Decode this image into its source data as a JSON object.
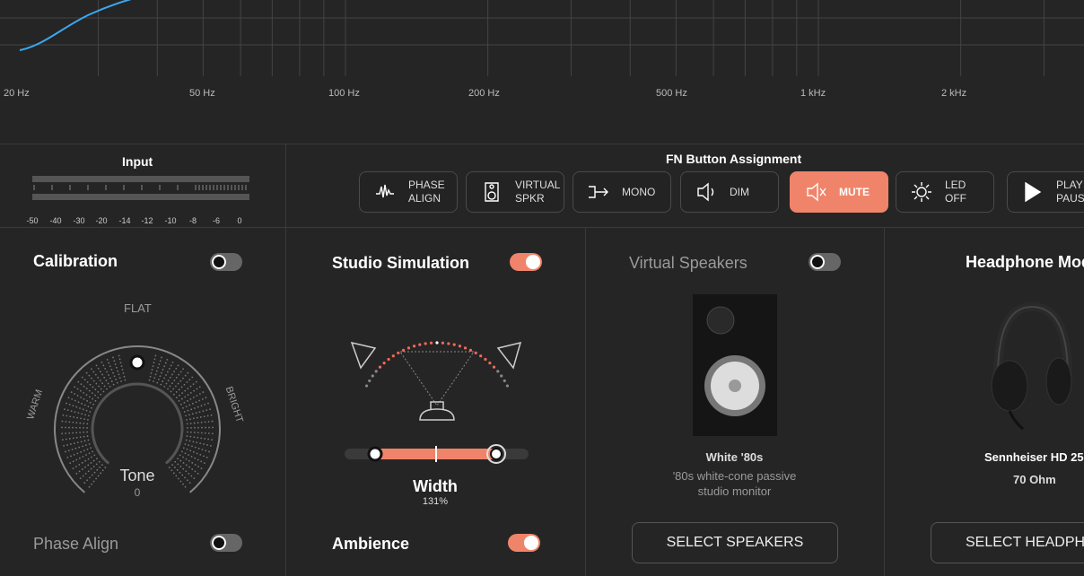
{
  "graph": {
    "freq_labels": [
      "20 Hz",
      "50 Hz",
      "100 Hz",
      "200 Hz",
      "500 Hz",
      "1 kHz",
      "2 kHz"
    ]
  },
  "input": {
    "title": "Input",
    "meter_labels": [
      "-50",
      "-40",
      "-30",
      "-20",
      "-14",
      "-12",
      "-10",
      "-8",
      "-6",
      "0"
    ]
  },
  "fn": {
    "title": "FN Button Assignment",
    "buttons": [
      {
        "lines": [
          "PHASE",
          "ALIGN"
        ]
      },
      {
        "lines": [
          "VIRTUAL",
          "SPKR"
        ]
      },
      {
        "lines": [
          "MONO"
        ]
      },
      {
        "lines": [
          "DIM"
        ]
      },
      {
        "lines": [
          "MUTE"
        ]
      },
      {
        "lines": [
          "LED",
          "OFF"
        ]
      },
      {
        "lines": [
          "PLAY",
          "PAUSE"
        ]
      }
    ]
  },
  "calibration": {
    "title": "Calibration",
    "flat": "FLAT",
    "warm": "WARM",
    "bright": "BRIGHT",
    "knob_label": "Tone",
    "knob_value": "0",
    "phase_align": "Phase Align"
  },
  "studio": {
    "title": "Studio Simulation",
    "slider_label": "Width",
    "slider_value": "131%",
    "ambience": "Ambience"
  },
  "speakers": {
    "title": "Virtual Speakers",
    "name": "White '80s",
    "desc": [
      "'80s white-cone passive",
      "studio monitor"
    ],
    "button": "SELECT SPEAKERS"
  },
  "headphones": {
    "title": "Headphone Model",
    "name": "Sennheiser HD 25",
    "impedance": "70 Ohm",
    "button": "SELECT HEADPHONES"
  }
}
